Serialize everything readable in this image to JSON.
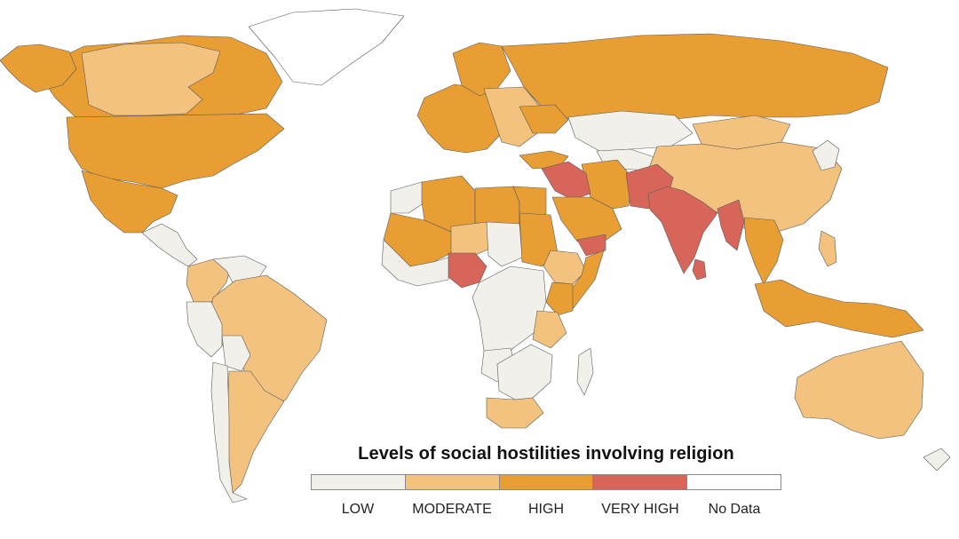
{
  "legend": {
    "title": "Levels of social hostilities involving religion",
    "categories": [
      {
        "label": "LOW",
        "color": "#f1f0ea"
      },
      {
        "label": "MODERATE",
        "color": "#f2c27e"
      },
      {
        "label": "HIGH",
        "color": "#e99e33"
      },
      {
        "label": "VERY HIGH",
        "color": "#d8655a"
      },
      {
        "label": "No Data",
        "color": "#ffffff"
      }
    ]
  },
  "regions": [
    {
      "name": "Canada",
      "level": "HIGH"
    },
    {
      "name": "Northern Canada",
      "level": "MODERATE"
    },
    {
      "name": "Alaska",
      "level": "HIGH"
    },
    {
      "name": "Greenland",
      "level": "No Data"
    },
    {
      "name": "United States",
      "level": "HIGH"
    },
    {
      "name": "Mexico",
      "level": "HIGH"
    },
    {
      "name": "Central America",
      "level": "LOW"
    },
    {
      "name": "Colombia",
      "level": "MODERATE"
    },
    {
      "name": "Venezuela",
      "level": "LOW"
    },
    {
      "name": "Brazil",
      "level": "MODERATE"
    },
    {
      "name": "Peru",
      "level": "LOW"
    },
    {
      "name": "Bolivia",
      "level": "LOW"
    },
    {
      "name": "Argentina",
      "level": "MODERATE"
    },
    {
      "name": "Chile",
      "level": "LOW"
    },
    {
      "name": "Western Europe",
      "level": "HIGH"
    },
    {
      "name": "Scandinavia",
      "level": "HIGH"
    },
    {
      "name": "Eastern Europe",
      "level": "MODERATE"
    },
    {
      "name": "Russia",
      "level": "HIGH"
    },
    {
      "name": "Kazakhstan",
      "level": "LOW"
    },
    {
      "name": "Central Asia",
      "level": "LOW"
    },
    {
      "name": "China",
      "level": "MODERATE"
    },
    {
      "name": "Mongolia",
      "level": "MODERATE"
    },
    {
      "name": "Turkey",
      "level": "HIGH"
    },
    {
      "name": "Iran",
      "level": "HIGH"
    },
    {
      "name": "Iraq & Syria",
      "level": "VERY HIGH"
    },
    {
      "name": "Saudi Arabia",
      "level": "HIGH"
    },
    {
      "name": "Yemen",
      "level": "VERY HIGH"
    },
    {
      "name": "Pakistan & Afghanistan",
      "level": "VERY HIGH"
    },
    {
      "name": "India",
      "level": "VERY HIGH"
    },
    {
      "name": "Sri Lanka",
      "level": "VERY HIGH"
    },
    {
      "name": "Myanmar",
      "level": "VERY HIGH"
    },
    {
      "name": "Southeast Asia",
      "level": "HIGH"
    },
    {
      "name": "Indonesia",
      "level": "HIGH"
    },
    {
      "name": "Philippines",
      "level": "MODERATE"
    },
    {
      "name": "Japan & Korea",
      "level": "LOW"
    },
    {
      "name": "Australia",
      "level": "MODERATE"
    },
    {
      "name": "New Zealand",
      "level": "LOW"
    },
    {
      "name": "Morocco",
      "level": "LOW"
    },
    {
      "name": "Algeria",
      "level": "HIGH"
    },
    {
      "name": "Libya",
      "level": "HIGH"
    },
    {
      "name": "Egypt",
      "level": "HIGH"
    },
    {
      "name": "Mali & Sahel",
      "level": "HIGH"
    },
    {
      "name": "Niger",
      "level": "MODERATE"
    },
    {
      "name": "Chad",
      "level": "LOW"
    },
    {
      "name": "Sudan",
      "level": "HIGH"
    },
    {
      "name": "Nigeria",
      "level": "VERY HIGH"
    },
    {
      "name": "West Africa",
      "level": "LOW"
    },
    {
      "name": "Ethiopia",
      "level": "MODERATE"
    },
    {
      "name": "Somalia",
      "level": "HIGH"
    },
    {
      "name": "Kenya",
      "level": "HIGH"
    },
    {
      "name": "Central Africa",
      "level": "LOW"
    },
    {
      "name": "Tanzania",
      "level": "MODERATE"
    },
    {
      "name": "Angola",
      "level": "LOW"
    },
    {
      "name": "Southern Africa",
      "level": "LOW"
    },
    {
      "name": "South Africa",
      "level": "MODERATE"
    },
    {
      "name": "Madagascar",
      "level": "LOW"
    },
    {
      "name": "Ukraine",
      "level": "HIGH"
    }
  ]
}
